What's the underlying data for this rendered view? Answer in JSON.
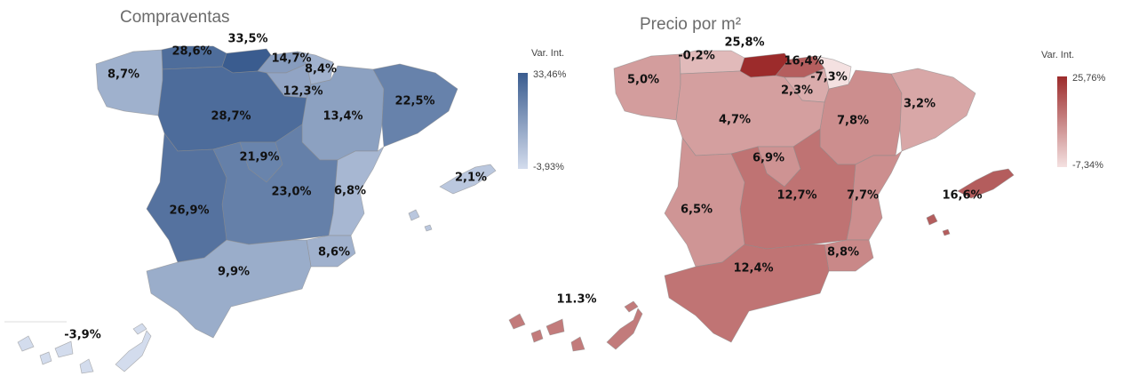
{
  "maps": [
    {
      "title": "Compraventas",
      "legend": {
        "title": "Var. Int.",
        "ticks": [
          {
            "value": 33.46,
            "label": "33,46%"
          },
          {
            "value": -3.93,
            "label": "-3,93%"
          }
        ]
      },
      "color_low": "#d3dced",
      "color_high": "#3a5c8f",
      "values": [
        8.7,
        28.6,
        33.5,
        14.7,
        8.4,
        12.3,
        13.4,
        22.5,
        28.7,
        21.9,
        23.0,
        26.9,
        6.8,
        8.6,
        9.9,
        2.1,
        -3.9
      ],
      "value_labels": [
        "8,7%",
        "28,6%",
        "33,5%",
        "14,7%",
        "8,4%",
        "12,3%",
        "13,4%",
        "22,5%",
        "28,7%",
        "21,9%",
        "23,0%",
        "26,9%",
        "6,8%",
        "8,6%",
        "9,9%",
        "2,1%",
        "-3,9%"
      ]
    },
    {
      "title": "Precio por m²",
      "legend": {
        "title": "Var. Int.",
        "ticks": [
          {
            "value": 25.76,
            "label": "25,76%"
          },
          {
            "value": -7.34,
            "label": "-7,34%"
          }
        ]
      },
      "color_low": "#f4e1e1",
      "color_high": "#9c2b2b",
      "values": [
        5.0,
        -0.2,
        25.8,
        16.4,
        -7.3,
        2.3,
        7.8,
        3.2,
        4.7,
        6.9,
        12.7,
        6.5,
        7.7,
        8.8,
        12.4,
        16.6,
        11.3
      ],
      "value_labels": [
        "5,0%",
        "-0,2%",
        "25,8%",
        "16,4%",
        "-7,3%",
        "2,3%",
        "7,8%",
        "3,2%",
        "4,7%",
        "6,9%",
        "12,7%",
        "6,5%",
        "7,7%",
        "8,8%",
        "12,4%",
        "16,6%",
        "11.3%"
      ]
    }
  ]
}
